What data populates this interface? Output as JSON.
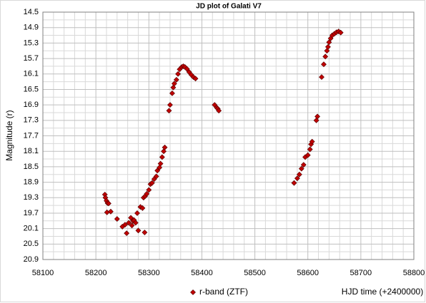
{
  "chart_data": {
    "type": "scatter",
    "title": "JD plot of Galati V7",
    "x_label": "HJD time (+2400000)",
    "y_label": "Magnitude (r)",
    "x": [
      58217,
      58218,
      58220,
      58222,
      58224,
      58221,
      58228,
      58240,
      58250,
      58255,
      58258,
      58262,
      58266,
      58268,
      58270,
      58272,
      58275,
      58278,
      58280,
      58284,
      58288,
      58292,
      58290,
      58293,
      58296,
      58300,
      58303,
      58306,
      58310,
      58314,
      58316,
      58320,
      58322,
      58325,
      58328,
      58330,
      58338,
      58340,
      58344,
      58346,
      58348,
      58352,
      58355,
      58358,
      58362,
      58365,
      58368,
      58372,
      58376,
      58380,
      58384,
      58388,
      58424,
      58428,
      58430,
      58432,
      58574,
      58580,
      58584,
      58588,
      58592,
      58595,
      58600,
      58604,
      58606,
      58608,
      58616,
      58618,
      58626,
      58630,
      58633,
      58636,
      58638,
      58640,
      58643,
      58646,
      58650,
      58654,
      58658,
      58662
    ],
    "series": [
      {
        "name": "r-band (ZTF)",
        "color": "#c00000",
        "values": [
          19.22,
          19.3,
          19.38,
          19.44,
          19.45,
          19.68,
          19.66,
          19.85,
          20.05,
          20.0,
          20.22,
          19.95,
          19.82,
          20.02,
          19.9,
          19.88,
          19.95,
          19.7,
          20.15,
          19.54,
          19.57,
          20.2,
          19.3,
          19.26,
          19.2,
          19.1,
          18.95,
          18.92,
          18.82,
          18.75,
          18.6,
          18.52,
          18.42,
          18.25,
          18.1,
          18.0,
          17.05,
          16.9,
          16.6,
          16.45,
          16.35,
          16.25,
          16.1,
          15.98,
          15.92,
          15.9,
          15.92,
          15.97,
          16.05,
          16.12,
          16.18,
          16.22,
          16.9,
          16.97,
          17.0,
          17.05,
          18.92,
          18.8,
          18.7,
          18.55,
          18.45,
          18.25,
          18.2,
          18.05,
          17.92,
          17.85,
          17.3,
          17.2,
          16.18,
          15.85,
          15.65,
          15.5,
          15.4,
          15.28,
          15.18,
          15.1,
          15.06,
          15.02,
          15.0,
          15.03
        ]
      }
    ],
    "xlim": [
      58100,
      58800
    ],
    "xticks": [
      58100,
      58200,
      58300,
      58400,
      58500,
      58600,
      58700,
      58800
    ],
    "xminorticks": [
      58120,
      58140,
      58160,
      58180,
      58220,
      58240,
      58260,
      58280,
      58320,
      58340,
      58360,
      58380,
      58420,
      58440,
      58460,
      58480,
      58520,
      58540,
      58560,
      58580,
      58620,
      58640,
      58660,
      58680,
      58720,
      58740,
      58760,
      58780
    ],
    "ylim": [
      14.5,
      20.9
    ],
    "yticks": [
      14.5,
      14.9,
      15.3,
      15.7,
      16.1,
      16.5,
      16.9,
      17.3,
      17.7,
      18.1,
      18.5,
      18.9,
      19.3,
      19.7,
      20.1,
      20.5,
      20.9
    ],
    "yminorticks": [
      14.7,
      15.1,
      15.5,
      15.9,
      16.3,
      16.7,
      17.1,
      17.5,
      17.9,
      18.3,
      18.7,
      19.1,
      19.5,
      19.9,
      20.3,
      20.7
    ],
    "y_inverted": true,
    "grid": true,
    "legend": "bottom"
  }
}
